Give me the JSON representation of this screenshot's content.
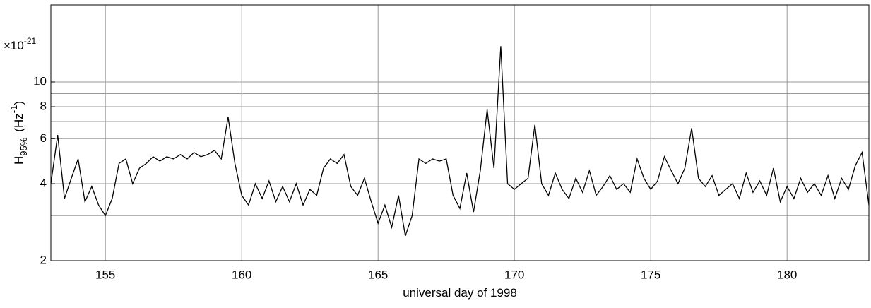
{
  "chart_data": {
    "type": "line",
    "log_y": true,
    "grid": true,
    "color": "#000000",
    "exponent_label": {
      "base": "×10",
      "power": "-21"
    },
    "x_label": "universal day of 1998",
    "y_label": {
      "main": "H",
      "sub": "95%",
      "unit": "(Hz",
      "power": "-1",
      "close": ")"
    },
    "xlim": [
      153,
      183
    ],
    "xticks": [
      155,
      160,
      165,
      170,
      175,
      180
    ],
    "ylim": [
      2,
      20
    ],
    "yticks": [
      2,
      4,
      6,
      8,
      10
    ],
    "ygrid": [
      3,
      4,
      6,
      7,
      8,
      9,
      10
    ],
    "x": [
      153,
      153.25,
      153.5,
      153.75,
      154,
      154.25,
      154.5,
      154.75,
      155,
      155.25,
      155.5,
      155.75,
      156,
      156.25,
      156.5,
      156.75,
      157,
      157.25,
      157.5,
      157.75,
      158,
      158.25,
      158.5,
      158.75,
      159,
      159.25,
      159.5,
      159.75,
      160,
      160.25,
      160.5,
      160.75,
      161,
      161.25,
      161.5,
      161.75,
      162,
      162.25,
      162.5,
      162.75,
      163,
      163.25,
      163.5,
      163.75,
      164,
      164.25,
      164.5,
      164.75,
      165,
      165.25,
      165.5,
      165.75,
      166,
      166.25,
      166.5,
      166.75,
      167,
      167.25,
      167.5,
      167.75,
      168,
      168.25,
      168.5,
      168.75,
      169,
      169.25,
      169.5,
      169.75,
      170,
      170.25,
      170.5,
      170.75,
      171,
      171.25,
      171.5,
      171.75,
      172,
      172.25,
      172.5,
      172.75,
      173,
      173.25,
      173.5,
      173.75,
      174,
      174.25,
      174.5,
      174.75,
      175,
      175.25,
      175.5,
      175.75,
      176,
      176.25,
      176.5,
      176.75,
      177,
      177.25,
      177.5,
      177.75,
      178,
      178.25,
      178.5,
      178.75,
      179,
      179.25,
      179.5,
      179.75,
      180,
      180.25,
      180.5,
      180.75,
      181,
      181.25,
      181.5,
      181.75,
      182,
      182.25,
      182.5,
      182.75,
      183
    ],
    "values": [
      4.0,
      6.2,
      3.5,
      4.2,
      5.0,
      3.4,
      3.9,
      3.3,
      3.0,
      3.5,
      4.8,
      5.0,
      4.0,
      4.6,
      4.8,
      5.1,
      4.9,
      5.1,
      5.0,
      5.2,
      5.0,
      5.3,
      5.1,
      5.2,
      5.4,
      5.0,
      7.3,
      4.8,
      3.6,
      3.3,
      4.0,
      3.5,
      4.1,
      3.4,
      3.9,
      3.4,
      4.0,
      3.3,
      3.8,
      3.6,
      4.6,
      5.0,
      4.8,
      5.2,
      3.9,
      3.6,
      4.2,
      3.4,
      2.8,
      3.3,
      2.7,
      3.6,
      2.5,
      3.0,
      5.0,
      4.8,
      5.0,
      4.9,
      5.0,
      3.6,
      3.2,
      4.4,
      3.1,
      4.5,
      7.8,
      4.6,
      13.8,
      4.0,
      3.8,
      4.0,
      4.2,
      6.8,
      4.0,
      3.6,
      4.4,
      3.8,
      3.5,
      4.2,
      3.7,
      4.5,
      3.6,
      3.9,
      4.3,
      3.8,
      4.0,
      3.7,
      5.0,
      4.2,
      3.8,
      4.1,
      5.1,
      4.5,
      4.0,
      4.6,
      6.6,
      4.2,
      3.9,
      4.3,
      3.6,
      3.8,
      4.0,
      3.5,
      4.4,
      3.7,
      4.1,
      3.6,
      4.6,
      3.4,
      3.9,
      3.5,
      4.2,
      3.7,
      4.0,
      3.6,
      4.3,
      3.5,
      4.2,
      3.8,
      4.7,
      5.3,
      3.3
    ]
  }
}
